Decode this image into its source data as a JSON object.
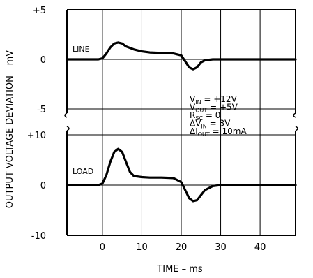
{
  "chart_data": {
    "type": "line",
    "xlabel": "TIME – ms",
    "ylabel": "OUTPUT VOLTAGE DEVIATION – mV",
    "x_ticks": [
      "0",
      "10",
      "20",
      "30",
      "40"
    ],
    "xlim": [
      -9,
      49
    ],
    "panels": [
      {
        "name": "LINE",
        "ylim": [
          -5,
          5
        ],
        "y_ticks": [
          "+5",
          "0",
          "-5"
        ],
        "x": [
          -9,
          -1,
          0,
          1,
          2,
          3,
          4,
          5,
          6,
          8,
          10,
          12,
          15,
          18,
          20,
          21,
          22,
          23,
          24,
          25,
          26,
          28,
          49
        ],
        "y": [
          0,
          0,
          0.1,
          0.6,
          1.2,
          1.6,
          1.7,
          1.6,
          1.3,
          1.0,
          0.8,
          0.7,
          0.65,
          0.6,
          0.4,
          -0.2,
          -0.8,
          -1.0,
          -0.8,
          -0.3,
          -0.1,
          0,
          0
        ]
      },
      {
        "name": "LOAD",
        "ylim": [
          -10,
          10
        ],
        "y_ticks": [
          "+10",
          "0",
          "-10"
        ],
        "x": [
          -9,
          -1,
          0,
          1,
          2,
          3,
          4,
          5,
          6,
          7,
          8,
          10,
          12,
          15,
          18,
          20,
          21,
          22,
          23,
          24,
          25,
          26,
          28,
          30,
          49
        ],
        "y": [
          0,
          0,
          0.3,
          2.0,
          4.6,
          6.6,
          7.2,
          6.6,
          4.6,
          2.6,
          1.8,
          1.6,
          1.5,
          1.5,
          1.4,
          0.6,
          -1.0,
          -2.6,
          -3.2,
          -3.0,
          -2.0,
          -1.0,
          -0.2,
          0,
          0
        ]
      }
    ],
    "annotation": [
      {
        "base": "V",
        "sub": "IN",
        "rest": " = +12V"
      },
      {
        "base": "V",
        "sub": "OUT",
        "rest": " = +5V"
      },
      {
        "base": "R",
        "sub": "SC",
        "rest": " = 0"
      },
      {
        "base": "ΔV",
        "sub": "IN",
        "rest": " = 3V"
      },
      {
        "base": "ΔI",
        "sub": "OUT",
        "rest": " = 10mA"
      }
    ]
  }
}
